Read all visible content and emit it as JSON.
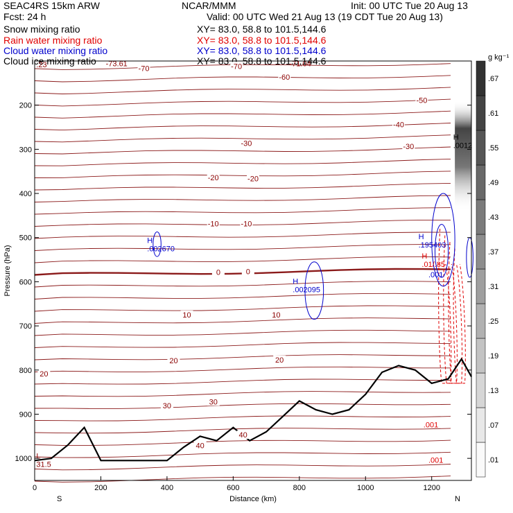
{
  "header": {
    "model": "SEAC4RS 15km ARW",
    "org": "NCAR/MMM",
    "init": "Init: 00 UTC Tue 20 Aug 13",
    "fcst": "Fcst:   24 h",
    "valid": "Valid: 00 UTC Wed 21 Aug 13 (19 CDT Tue 20 Aug 13)",
    "fields": [
      {
        "name": "Snow mixing ratio",
        "xy": "XY=  83.0, 58.8 to 101.5,144.6",
        "color": "#000000"
      },
      {
        "name": "Rain water mixing ratio",
        "xy": "XY=  83.0, 58.8 to 101.5,144.6",
        "color": "#e00000"
      },
      {
        "name": "Cloud water mixing ratio",
        "xy": "XY=  83.0, 58.8 to 101.5,144.6",
        "color": "#0000cc"
      },
      {
        "name": "Cloud ice mixing ratio",
        "xy": "XY=  83.0, 58.8 to 101.5,144.6",
        "color": "#000000"
      }
    ]
  },
  "chart_data": {
    "type": "cross-section",
    "xlabel": "Distance (km)",
    "ylabel": "Pressure (hPa)",
    "xlim": [
      0,
      1320
    ],
    "ylim": [
      1050,
      100
    ],
    "x_ticks": [
      0,
      200,
      400,
      600,
      800,
      1000,
      1200
    ],
    "y_ticks": [
      200,
      300,
      400,
      500,
      600,
      700,
      800,
      900,
      1000
    ],
    "end_labels": {
      "left": "S",
      "right": "N"
    },
    "colorbar": {
      "unit": "g kg⁻¹",
      "levels": [
        0.01,
        0.07,
        0.13,
        0.19,
        0.25,
        0.31,
        0.37,
        0.43,
        0.49,
        0.55,
        0.61,
        0.67
      ],
      "tick_labels": [
        ".01",
        ".07",
        ".13",
        ".19",
        ".25",
        ".31",
        ".37",
        ".43",
        ".49",
        ".55",
        ".61",
        ".67"
      ]
    },
    "temperature_isotherms": [
      {
        "label": "-70",
        "x": 330,
        "p": 118
      },
      {
        "label": "-70",
        "x": 610,
        "p": 113
      },
      {
        "label": "-60",
        "x": 755,
        "p": 138
      },
      {
        "label": "-50",
        "x": 1170,
        "p": 190
      },
      {
        "label": "-40",
        "x": 1100,
        "p": 245
      },
      {
        "label": "-30",
        "x": 640,
        "p": 288
      },
      {
        "label": "-30",
        "x": 1130,
        "p": 295
      },
      {
        "label": "-20",
        "x": 540,
        "p": 365
      },
      {
        "label": "-20",
        "x": 660,
        "p": 368
      },
      {
        "label": "-10",
        "x": 540,
        "p": 470
      },
      {
        "label": "-10",
        "x": 640,
        "p": 470
      },
      {
        "label": "0",
        "x": 555,
        "p": 580
      },
      {
        "label": "0",
        "x": 645,
        "p": 578
      },
      {
        "label": "10",
        "x": 460,
        "p": 676
      },
      {
        "label": "10",
        "x": 730,
        "p": 676
      },
      {
        "label": "20",
        "x": 28,
        "p": 810
      },
      {
        "label": "20",
        "x": 420,
        "p": 780
      },
      {
        "label": "20",
        "x": 740,
        "p": 778
      },
      {
        "label": "30",
        "x": 400,
        "p": 882
      },
      {
        "label": "30",
        "x": 540,
        "p": 873
      },
      {
        "label": "40",
        "x": 500,
        "p": 972
      },
      {
        "label": "40",
        "x": 630,
        "p": 948
      }
    ],
    "extrema": [
      {
        "mark": "H",
        "value": ".002670",
        "x": 340,
        "p": 522,
        "color": "#0000cc"
      },
      {
        "mark": "H",
        "value": ".002095",
        "x": 780,
        "p": 614,
        "color": "#0000cc"
      },
      {
        "mark": "H",
        "value": ".195403",
        "x": 1160,
        "p": 513,
        "color": "#0000cc"
      },
      {
        "mark": "H",
        "value": ".0012",
        "x": 1265,
        "p": 288,
        "color": "#000000"
      },
      {
        "mark": "H",
        "value": ".01/.85",
        "x": 1170,
        "p": 557,
        "color": "#e00000"
      },
      {
        "mark": "L",
        "value": "31.5",
        "x": 5,
        "p": 1010,
        "color": "#8b0000"
      }
    ],
    "edge_values": [
      {
        "text": ".23",
        "x": 5,
        "p": 114
      },
      {
        "text": "-73.61",
        "x": 215,
        "p": 112
      },
      {
        "text": "-71.04",
        "x": 770,
        "p": 112
      }
    ],
    "contour_values": [
      {
        "text": ".001",
        "x": 1190,
        "p": 590,
        "color": "#0000cc"
      },
      {
        "text": ".001",
        "x": 1175,
        "p": 930,
        "color": "#e00000"
      },
      {
        "text": ".001",
        "x": 1190,
        "p": 1010,
        "color": "#e00000"
      }
    ],
    "terrain_surface_pressure": {
      "x": [
        0,
        50,
        100,
        150,
        200,
        300,
        400,
        450,
        500,
        550,
        600,
        650,
        700,
        750,
        800,
        850,
        900,
        950,
        1000,
        1050,
        1100,
        1150,
        1200,
        1250,
        1290,
        1320
      ],
      "p": [
        1005,
        1000,
        970,
        930,
        1005,
        1005,
        1005,
        975,
        950,
        960,
        930,
        960,
        940,
        905,
        870,
        890,
        900,
        890,
        855,
        805,
        790,
        800,
        830,
        820,
        775,
        815
      ]
    }
  }
}
